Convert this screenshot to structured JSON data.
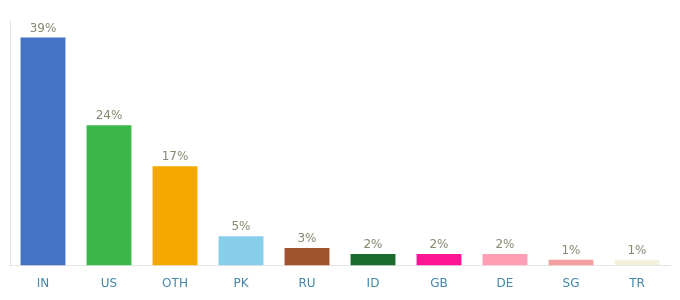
{
  "chart_data": {
    "type": "bar",
    "categories": [
      "IN",
      "US",
      "OTH",
      "PK",
      "RU",
      "ID",
      "GB",
      "DE",
      "SG",
      "TR"
    ],
    "values": [
      39,
      24,
      17,
      5,
      3,
      2,
      2,
      2,
      1,
      1
    ],
    "value_labels": [
      "39%",
      "24%",
      "17%",
      "5%",
      "3%",
      "2%",
      "2%",
      "2%",
      "1%",
      "1%"
    ],
    "colors": [
      "#4472c4",
      "#3cb84a",
      "#f4a800",
      "#87ceeb",
      "#a0522d",
      "#1a6b2e",
      "#ff1493",
      "#ff9eb5",
      "#f4a0a0",
      "#f5f0dc"
    ],
    "ylim": [
      0,
      42
    ],
    "grid": false,
    "data_labels": true,
    "tick_labels": "x"
  }
}
